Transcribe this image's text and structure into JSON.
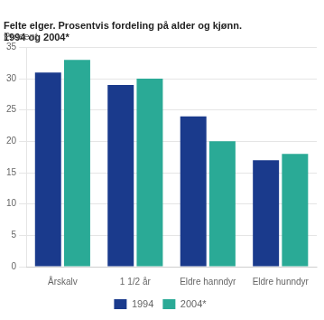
{
  "chart_data": {
    "type": "bar",
    "title": "Felte elger. Prosentvis fordeling på alder og kjønn.",
    "subtitle": "1994 og 2004*",
    "ylabel": "Prosent",
    "categories": [
      "Årskalv",
      "1 1/2 år",
      "Eldre hanndyr",
      "Eldre hunndyr"
    ],
    "series": [
      {
        "name": "1994",
        "color": "#1a3a8c",
        "values": [
          31.0,
          29.0,
          24.0,
          17.0
        ]
      },
      {
        "name": "2004*",
        "color": "#2aaa96",
        "values": [
          33.0,
          30.0,
          20.0,
          18.0
        ]
      }
    ],
    "ylim": [
      0,
      35
    ],
    "yticks": [
      0,
      5,
      10,
      15,
      20,
      25,
      30,
      35
    ],
    "grid": true,
    "legend": "bottom"
  }
}
